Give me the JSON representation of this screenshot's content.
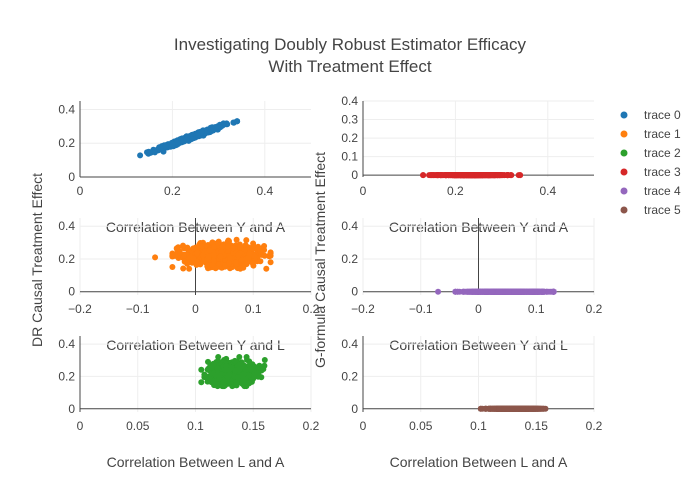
{
  "title_line1": "Investigating Doubly Robust Estimator Efficacy",
  "title_line2": "With Treatment Effect",
  "ylabel_left": "DR Causal Treatment Effect",
  "ylabel_right": "G-formula Causal Treatment Effect",
  "legend": [
    "trace 0",
    "trace 1",
    "trace 2",
    "trace 3",
    "trace 4",
    "trace 5"
  ],
  "colors": [
    "#1f77b4",
    "#ff7f0e",
    "#2ca02c",
    "#d62728",
    "#9467bd",
    "#8c564b"
  ],
  "chart_data": [
    {
      "type": "scatter",
      "name": "trace 0",
      "xlabel": "Correlation Between Y and A",
      "xlim": [
        0,
        0.5
      ],
      "ylim": [
        0,
        0.45
      ],
      "xticks": [
        0,
        0.2,
        0.4
      ],
      "yticks": [
        0,
        0.2,
        0.4
      ],
      "x_range": [
        0.13,
        0.34
      ],
      "y_range": [
        0.12,
        0.33
      ],
      "relation": "linear, y ≈ x"
    },
    {
      "type": "scatter",
      "name": "trace 3",
      "xlabel": "Correlation Between Y and A",
      "xlim": [
        0,
        0.5
      ],
      "ylim": [
        -0.01,
        0.4
      ],
      "xticks": [
        0,
        0.2,
        0.4
      ],
      "yticks": [
        0,
        0.1,
        0.2,
        0.3,
        0.4
      ],
      "x_range": [
        0.13,
        0.34
      ],
      "y_value": 0
    },
    {
      "type": "scatter",
      "name": "trace 1",
      "xlabel": "Correlation Between Y and L",
      "xlim": [
        -0.2,
        0.2
      ],
      "ylim": [
        -0.02,
        0.45
      ],
      "xticks": [
        -0.2,
        -0.1,
        0,
        0.1,
        0.2
      ],
      "yticks": [
        0,
        0.2,
        0.4
      ],
      "x_range": [
        -0.07,
        0.13
      ],
      "y_range": [
        0.14,
        0.32
      ],
      "y_center": 0.22
    },
    {
      "type": "scatter",
      "name": "trace 4",
      "xlabel": "Correlation Between Y and L",
      "xlim": [
        -0.2,
        0.2
      ],
      "ylim": [
        -0.02,
        0.45
      ],
      "xticks": [
        -0.2,
        -0.1,
        0,
        0.1,
        0.2
      ],
      "yticks": [
        0,
        0.2,
        0.4
      ],
      "x_range": [
        -0.07,
        0.13
      ],
      "y_value": 0
    },
    {
      "type": "scatter",
      "name": "trace 2",
      "xlabel": "Correlation Between L and A",
      "xlim": [
        0,
        0.2
      ],
      "ylim": [
        -0.02,
        0.45
      ],
      "xticks": [
        0,
        0.05,
        0.1,
        0.15,
        0.2
      ],
      "yticks": [
        0,
        0.2,
        0.4
      ],
      "x_range": [
        0.105,
        0.16
      ],
      "y_range": [
        0.14,
        0.32
      ],
      "y_center": 0.22
    },
    {
      "type": "scatter",
      "name": "trace 5",
      "xlabel": "Correlation Between L and A",
      "xlim": [
        0,
        0.2
      ],
      "ylim": [
        -0.02,
        0.45
      ],
      "xticks": [
        0,
        0.05,
        0.1,
        0.15,
        0.2
      ],
      "yticks": [
        0,
        0.2,
        0.4
      ],
      "x_range": [
        0.102,
        0.158
      ],
      "y_value": 0
    }
  ]
}
